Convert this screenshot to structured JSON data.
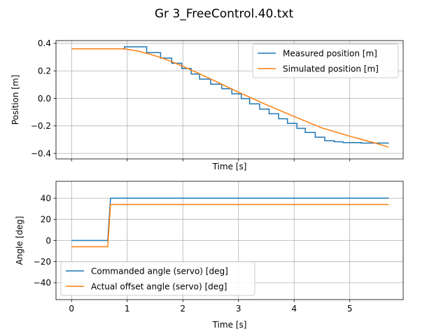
{
  "figure": {
    "title": "Gr 3_FreeControl.40.txt"
  },
  "colors": {
    "series_a": "#1f77b4",
    "series_b": "#ff7f0e",
    "grid": "#b0b0b0"
  },
  "chart_data": [
    {
      "type": "line",
      "xlabel": "Time [s]",
      "ylabel": "Position [m]",
      "xlim": [
        -0.28,
        5.96
      ],
      "ylim": [
        -0.44,
        0.42
      ],
      "xticks": [
        0,
        1,
        2,
        3,
        4,
        5
      ],
      "show_xtick_labels": false,
      "yticks": [
        -0.4,
        -0.2,
        0.0,
        0.2,
        0.4
      ],
      "ytick_labels": [
        "−0.4",
        "−0.2",
        "0.0",
        "0.2",
        "0.4"
      ],
      "grid": true,
      "legend": "upper right",
      "series": [
        {
          "name": "Measured position [m]",
          "color": "#1f77b4",
          "x": [
            0,
            0.95,
            0.95,
            1.35,
            1.35,
            1.6,
            1.6,
            1.8,
            1.8,
            1.98,
            1.98,
            2.15,
            2.15,
            2.3,
            2.3,
            2.5,
            2.5,
            2.7,
            2.7,
            2.88,
            2.88,
            3.05,
            3.05,
            3.2,
            3.2,
            3.38,
            3.38,
            3.55,
            3.55,
            3.72,
            3.72,
            3.88,
            3.88,
            4.05,
            4.05,
            4.2,
            4.2,
            4.38,
            4.38,
            4.55,
            4.55,
            4.72,
            4.72,
            4.88,
            4.88,
            5.05,
            5.05,
            5.2,
            5.2,
            5.35,
            5.35,
            5.7
          ],
          "y": [
            0.36,
            0.36,
            0.375,
            0.375,
            0.333,
            0.333,
            0.293,
            0.293,
            0.255,
            0.255,
            0.217,
            0.217,
            0.177,
            0.177,
            0.14,
            0.14,
            0.103,
            0.103,
            0.07,
            0.07,
            0.033,
            0.033,
            -0.002,
            -0.002,
            -0.04,
            -0.04,
            -0.078,
            -0.078,
            -0.112,
            -0.112,
            -0.148,
            -0.148,
            -0.182,
            -0.182,
            -0.218,
            -0.218,
            -0.248,
            -0.248,
            -0.282,
            -0.282,
            -0.308,
            -0.308,
            -0.315,
            -0.315,
            -0.322,
            -0.322,
            -0.322,
            -0.322,
            -0.325,
            -0.325,
            -0.325,
            -0.325
          ]
        },
        {
          "name": "Simulated position [m]",
          "color": "#ff7f0e",
          "x": [
            0,
            0.5,
            0.9,
            1.0,
            1.2,
            1.4,
            1.6,
            1.8,
            2.0,
            2.2,
            2.4,
            2.6,
            2.8,
            3.0,
            3.5,
            4.0,
            4.5,
            5.0,
            5.5,
            5.7
          ],
          "y": [
            0.36,
            0.36,
            0.36,
            0.357,
            0.343,
            0.322,
            0.297,
            0.267,
            0.233,
            0.197,
            0.16,
            0.122,
            0.083,
            0.045,
            -0.046,
            -0.132,
            -0.215,
            -0.275,
            -0.33,
            -0.355
          ]
        }
      ]
    },
    {
      "type": "line",
      "xlabel": "Time [s]",
      "ylabel": "Angle [deg]",
      "xlim": [
        -0.28,
        5.96
      ],
      "ylim": [
        -56,
        56
      ],
      "xticks": [
        0,
        1,
        2,
        3,
        4,
        5
      ],
      "show_xtick_labels": true,
      "yticks": [
        -40,
        -20,
        0,
        20,
        40
      ],
      "ytick_labels": [
        "−40",
        "−20",
        "0",
        "20",
        "40"
      ],
      "grid": true,
      "legend": "lower left",
      "series": [
        {
          "name": "Commanded angle (servo) [deg]",
          "color": "#1f77b4",
          "x": [
            0,
            0.65,
            0.7,
            5.7
          ],
          "y": [
            0,
            0,
            40,
            40
          ]
        },
        {
          "name": "Actual offset angle (servo) [deg]",
          "color": "#ff7f0e",
          "x": [
            0,
            0.65,
            0.7,
            5.7
          ],
          "y": [
            -6,
            -6,
            34,
            34
          ]
        }
      ]
    }
  ]
}
